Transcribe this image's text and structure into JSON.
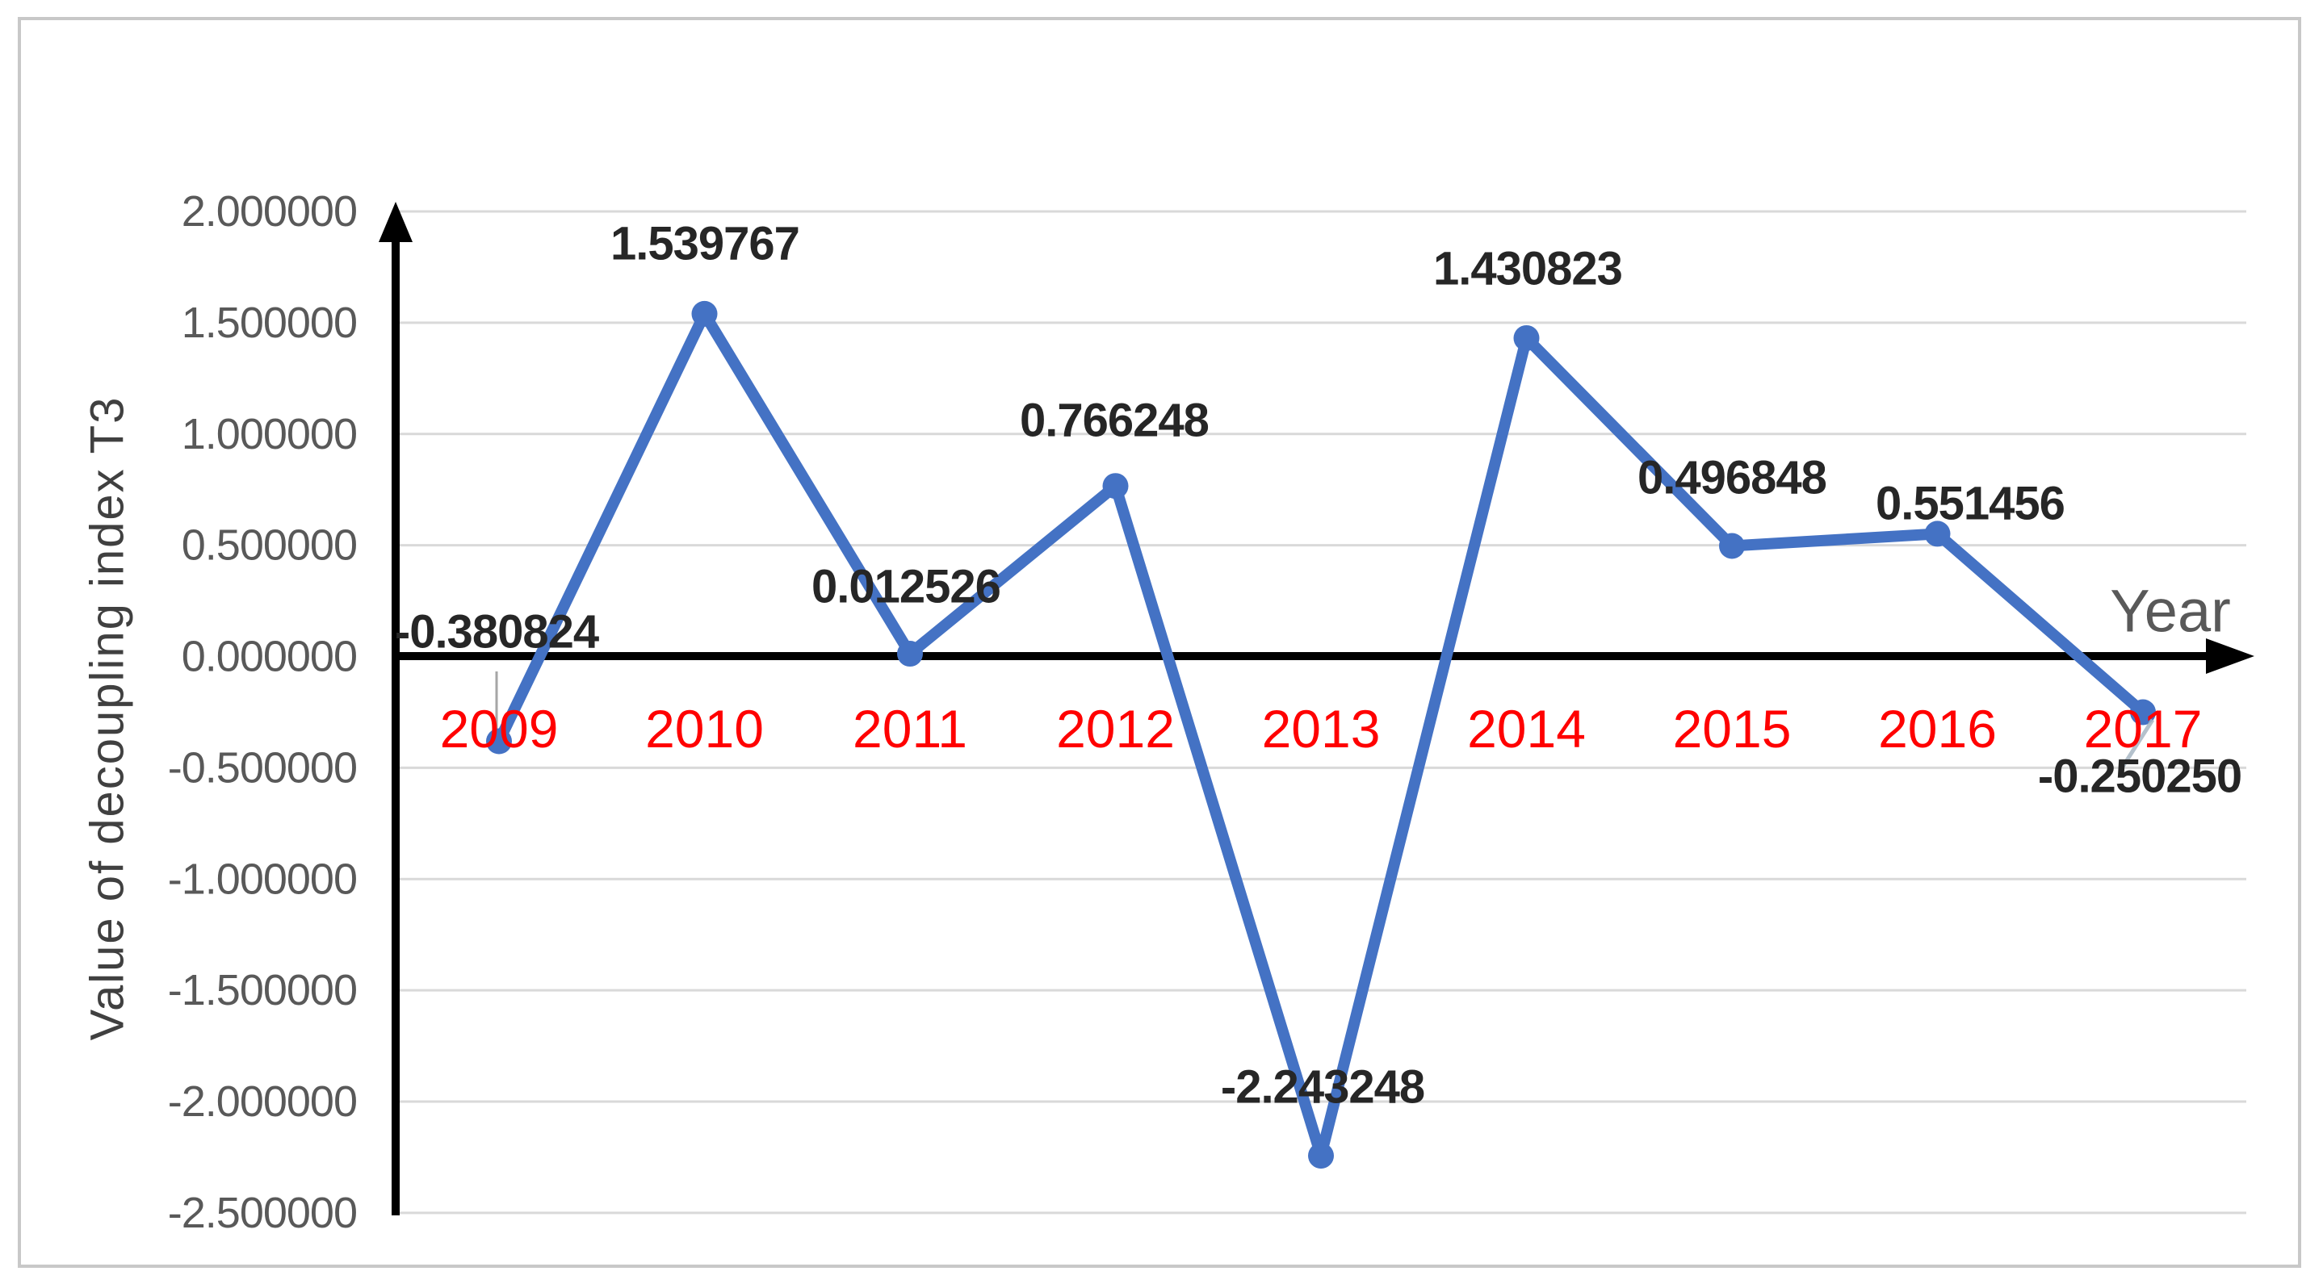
{
  "chart_data": {
    "type": "line",
    "title": "",
    "x": [
      "2009",
      "2010",
      "2011",
      "2012",
      "2013",
      "2014",
      "2015",
      "2016",
      "2017"
    ],
    "values": [
      -0.380824,
      1.539767,
      0.012526,
      0.766248,
      -2.243248,
      1.430823,
      0.496848,
      0.551456,
      -0.25025
    ],
    "data_labels": [
      "-0.380824",
      "1.539767",
      "0.012526",
      "0.766248",
      "-2.243248",
      "1.430823",
      "0.496848",
      "0.551456",
      "-0.250250"
    ],
    "xlabel": "Year",
    "ylabel": "Value of decoupling index T3",
    "ylim": [
      -2.5,
      2.0
    ],
    "ytick_step": 0.5,
    "yticks": [
      "2.000000",
      "1.500000",
      "1.000000",
      "0.500000",
      "0.000000",
      "-0.500000",
      "-1.000000",
      "-1.500000",
      "-2.000000",
      "-2.500000"
    ],
    "grid": true,
    "legend_position": "none",
    "series_name": "Value of decoupling index T3",
    "colors": {
      "line": "#4472c4",
      "marker": "#4472c4",
      "axis": "#000000",
      "gridline": "#d9d9d9",
      "tick_label": "#595959",
      "data_label": "#262626",
      "year_label": "#ff0000",
      "x_axis_title": "#595959",
      "y_axis_title": "#404040",
      "frame_border": "#c8c8c8",
      "background": "#ffffff",
      "leader_line": "#a6a6a6"
    }
  }
}
